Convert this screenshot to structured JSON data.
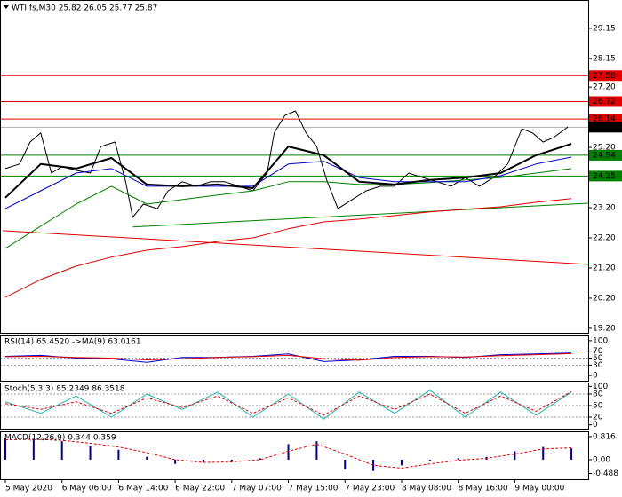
{
  "chart_data": [
    {
      "type": "line",
      "title": "WTI.fs,M30  25.82 26.05 25.77 25.87",
      "xlim": [
        -0.75,
        164.75
      ],
      "ylim": [
        19.05,
        30.09
      ],
      "yticks": [
        29.15,
        28.15,
        {
          "value": 27.2,
          "label": "27.20"
        },
        {
          "value": 25.2,
          "label": "25.20"
        },
        {
          "value": 23.2,
          "label": "23.20"
        },
        {
          "value": 22.2,
          "label": "22.20"
        },
        {
          "value": 21.2,
          "label": "21.20"
        },
        {
          "value": 20.2,
          "label": "20.20"
        },
        {
          "value": 19.2,
          "label": "19.20"
        }
      ],
      "levels": [
        {
          "value": 27.58,
          "color": "#e00000"
        },
        {
          "value": 26.72,
          "color": "#e00000"
        },
        {
          "value": 26.14,
          "color": "#e00000"
        },
        {
          "value": 25.87,
          "color": "#000000"
        },
        {
          "value": 24.94,
          "color": "#008000"
        },
        {
          "value": 24.25,
          "color": "#008000"
        }
      ],
      "trendlines": [
        {
          "color": "#008000",
          "x": [
            36,
            164.75
          ],
          "values": [
            22.56,
            23.35
          ]
        },
        {
          "color": "#e00000",
          "x": [
            -0.75,
            164.75
          ],
          "values": [
            22.44,
            21.32
          ]
        }
      ],
      "series": [
        {
          "color": "#000000",
          "width": 1,
          "x": [
            0,
            4,
            7,
            10,
            13,
            16,
            20,
            24,
            27,
            31,
            34,
            36,
            39,
            43,
            46,
            50,
            54,
            58,
            62,
            66,
            70,
            74,
            76,
            79,
            82,
            85,
            88,
            91,
            94,
            98,
            102,
            106,
            110,
            114,
            118,
            122,
            126,
            130,
            134,
            138,
            142,
            146,
            149,
            152,
            155,
            159
          ],
          "values": [
            24.5,
            24.65,
            25.38,
            25.68,
            24.35,
            24.56,
            24.44,
            24.35,
            25.23,
            25.38,
            24.06,
            22.88,
            23.32,
            23.17,
            23.76,
            24.06,
            23.91,
            24.06,
            24.06,
            23.91,
            23.76,
            24.35,
            25.68,
            26.26,
            26.41,
            25.68,
            25.23,
            24.06,
            23.17,
            23.47,
            23.76,
            23.91,
            23.91,
            24.35,
            24.2,
            24.06,
            23.91,
            24.2,
            23.91,
            24.2,
            24.65,
            25.82,
            25.68,
            25.38,
            25.53,
            25.88
          ]
        },
        {
          "color": "#e00000",
          "width": 1,
          "x": [
            0,
            10,
            20,
            30,
            40,
            50,
            60,
            70,
            80,
            90,
            100,
            110,
            120,
            130,
            140,
            150,
            160
          ],
          "values": [
            20.23,
            20.82,
            21.26,
            21.56,
            21.79,
            21.91,
            22.08,
            22.2,
            22.5,
            22.73,
            22.82,
            22.94,
            23.06,
            23.15,
            23.23,
            23.38,
            23.5
          ]
        },
        {
          "color": "#008000",
          "width": 1,
          "x": [
            0,
            10,
            20,
            30,
            40,
            50,
            60,
            70,
            80,
            90,
            100,
            110,
            120,
            130,
            140,
            150,
            160
          ],
          "values": [
            21.85,
            22.59,
            23.32,
            23.91,
            23.32,
            23.47,
            23.62,
            23.76,
            24.06,
            24.06,
            23.97,
            23.97,
            24.03,
            24.12,
            24.2,
            24.35,
            24.5
          ]
        },
        {
          "color": "#0000cd",
          "width": 1,
          "x": [
            0,
            10,
            20,
            30,
            40,
            50,
            60,
            70,
            80,
            90,
            100,
            110,
            120,
            130,
            140,
            150,
            160
          ],
          "values": [
            23.17,
            23.76,
            24.35,
            24.5,
            23.91,
            23.91,
            23.91,
            23.91,
            24.65,
            24.74,
            24.2,
            24.06,
            24.06,
            24.06,
            24.26,
            24.65,
            24.88
          ]
        },
        {
          "color": "#000000",
          "width": 2,
          "x": [
            0,
            10,
            20,
            30,
            40,
            50,
            60,
            70,
            80,
            90,
            100,
            110,
            120,
            130,
            140,
            150,
            160
          ],
          "values": [
            23.53,
            24.65,
            24.5,
            24.85,
            23.97,
            23.91,
            23.97,
            23.85,
            25.23,
            24.94,
            24.06,
            23.97,
            24.12,
            24.2,
            24.35,
            24.94,
            25.32
          ]
        }
      ]
    },
    {
      "type": "line",
      "title": "RSI(14) 65.4520 ->MA(9) 63.0161",
      "xlim": [
        -0.75,
        164.75
      ],
      "ylim": [
        -15,
        115
      ],
      "yticks": [
        100,
        70,
        50,
        30,
        0
      ],
      "dashed_levels": [
        70,
        50,
        30
      ],
      "series": [
        {
          "color": "#0000cd",
          "width": 1,
          "x": [
            0,
            10,
            20,
            30,
            40,
            50,
            60,
            70,
            80,
            90,
            100,
            110,
            120,
            130,
            140,
            150,
            160
          ],
          "values": [
            55,
            58,
            50,
            48,
            38,
            52,
            52,
            55,
            62,
            40,
            45,
            55,
            55,
            52,
            60,
            62,
            65
          ]
        },
        {
          "color": "#e00000",
          "width": 1,
          "x": [
            0,
            10,
            20,
            30,
            40,
            50,
            60,
            70,
            80,
            90,
            100,
            110,
            120,
            130,
            140,
            150,
            160
          ],
          "values": [
            54,
            55,
            52,
            50,
            45,
            48,
            52,
            54,
            58,
            48,
            44,
            52,
            54,
            53,
            57,
            60,
            63
          ]
        }
      ]
    },
    {
      "type": "line",
      "title": "Stoch(5,3,3) 85.2349 86.3518",
      "xlim": [
        -0.75,
        164.75
      ],
      "ylim": [
        -10,
        110
      ],
      "yticks": [
        100,
        80,
        50,
        20,
        0
      ],
      "dashed_levels": [
        80,
        50,
        20
      ],
      "series": [
        {
          "color": "#20b2aa",
          "width": 1,
          "x": [
            0,
            10,
            20,
            30,
            40,
            50,
            60,
            70,
            80,
            90,
            100,
            110,
            120,
            130,
            140,
            150,
            160
          ],
          "values": [
            60,
            30,
            75,
            20,
            80,
            40,
            85,
            20,
            80,
            15,
            85,
            30,
            90,
            20,
            85,
            25,
            85
          ]
        },
        {
          "color": "#e00000",
          "width": 1,
          "dash": true,
          "x": [
            0,
            10,
            20,
            30,
            40,
            50,
            60,
            70,
            80,
            90,
            100,
            110,
            120,
            130,
            140,
            150,
            160
          ],
          "values": [
            55,
            40,
            60,
            30,
            70,
            45,
            75,
            30,
            70,
            25,
            75,
            40,
            80,
            30,
            75,
            35,
            86
          ]
        }
      ]
    },
    {
      "type": "bar",
      "title": "MACD(12,26,9) 0.344 0.359",
      "xlim": [
        -0.75,
        164.75
      ],
      "ylim": [
        -0.69,
        1.0
      ],
      "yticks": [
        0.816,
        {
          "value": 0,
          "label": "0.00"
        },
        -0.488
      ],
      "xticks": [
        {
          "value": 0,
          "label": "5 May 2020"
        },
        {
          "value": 16,
          "label": "6 May 06:00"
        },
        {
          "value": 32,
          "label": "6 May 14:00"
        },
        {
          "value": 48,
          "label": "6 May 22:00"
        },
        {
          "value": 64,
          "label": "7 May 07:00"
        },
        {
          "value": 80,
          "label": "7 May 15:00"
        },
        {
          "value": 96,
          "label": "7 May 23:00"
        },
        {
          "value": 112,
          "label": "8 May 08:00"
        },
        {
          "value": 128,
          "label": "8 May 16:00"
        },
        {
          "value": 144,
          "label": "9 May 00:00"
        }
      ],
      "bars": {
        "color": "#00008b",
        "x": [
          0,
          8,
          16,
          24,
          32,
          40,
          48,
          56,
          64,
          72,
          80,
          88,
          96,
          104,
          112,
          120,
          128,
          136,
          144,
          152,
          160
        ],
        "values": [
          0.75,
          0.72,
          0.65,
          0.5,
          0.35,
          0.1,
          -0.15,
          -0.1,
          -0.05,
          0.05,
          0.55,
          0.65,
          -0.35,
          -0.4,
          -0.2,
          -0.05,
          0.05,
          0.1,
          0.3,
          0.45,
          0.4
        ]
      },
      "series": [
        {
          "color": "#e00000",
          "width": 1,
          "dash": true,
          "x": [
            0,
            8,
            16,
            24,
            32,
            40,
            48,
            56,
            64,
            72,
            80,
            88,
            96,
            104,
            112,
            120,
            128,
            136,
            144,
            152,
            160
          ],
          "values": [
            0.7,
            0.72,
            0.68,
            0.58,
            0.45,
            0.25,
            0.0,
            -0.1,
            -0.08,
            0.0,
            0.3,
            0.55,
            0.2,
            -0.2,
            -0.3,
            -0.15,
            -0.02,
            0.05,
            0.2,
            0.38,
            0.42
          ]
        }
      ]
    }
  ]
}
